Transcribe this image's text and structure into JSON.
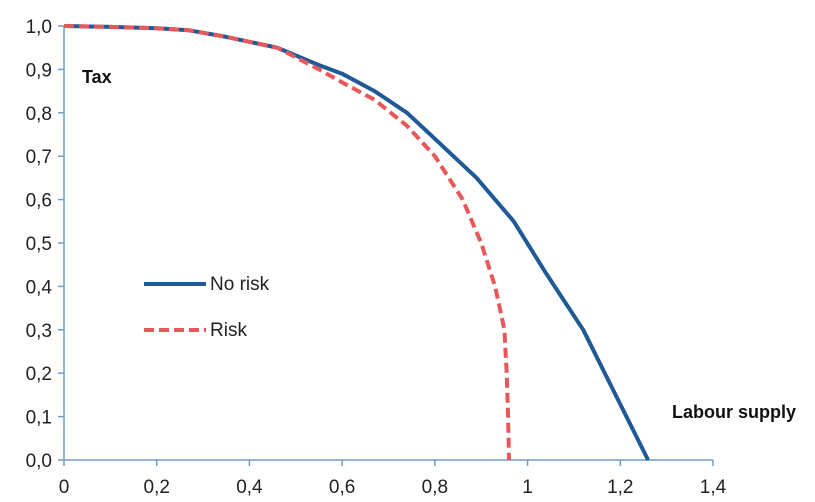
{
  "chart_data": {
    "type": "line",
    "title": "",
    "xlabel": "Labour supply",
    "ylabel": "Tax",
    "xlim": [
      0,
      1.4
    ],
    "ylim": [
      0,
      1.0
    ],
    "x_ticks": [
      0,
      0.2,
      0.4,
      0.6,
      0.8,
      1.0,
      1.2,
      1.4
    ],
    "x_tick_labels": [
      "0",
      "0,2",
      "0,4",
      "0,6",
      "0,8",
      "1",
      "1,2",
      "1,4"
    ],
    "y_ticks": [
      0,
      0.1,
      0.2,
      0.3,
      0.4,
      0.5,
      0.6,
      0.7,
      0.8,
      0.9,
      1.0
    ],
    "y_tick_labels": [
      "0,0",
      "0,1",
      "0,2",
      "0,3",
      "0,4",
      "0,5",
      "0,6",
      "0,7",
      "0,8",
      "0,9",
      "1,0"
    ],
    "grid": false,
    "legend_position": "left-center",
    "series": [
      {
        "name": "No risk",
        "color": "#1f5a96",
        "style": "solid",
        "x": [
          0.0,
          0.1,
          0.2,
          0.27,
          0.35,
          0.46,
          0.55,
          0.6,
          0.67,
          0.74,
          0.8,
          0.89,
          0.97,
          1.04,
          1.12,
          1.19,
          1.26
        ],
        "y": [
          1.0,
          0.998,
          0.995,
          0.99,
          0.975,
          0.95,
          0.91,
          0.89,
          0.85,
          0.8,
          0.74,
          0.65,
          0.55,
          0.43,
          0.3,
          0.15,
          0.0
        ]
      },
      {
        "name": "Risk",
        "color": "#e8575a",
        "style": "dashed",
        "x": [
          0.0,
          0.1,
          0.2,
          0.27,
          0.35,
          0.46,
          0.55,
          0.6,
          0.67,
          0.74,
          0.8,
          0.86,
          0.9,
          0.93,
          0.95,
          0.955,
          0.958,
          0.96
        ],
        "y": [
          1.0,
          0.998,
          0.995,
          0.99,
          0.975,
          0.95,
          0.9,
          0.87,
          0.83,
          0.77,
          0.7,
          0.6,
          0.5,
          0.4,
          0.3,
          0.2,
          0.1,
          0.0
        ]
      }
    ]
  }
}
